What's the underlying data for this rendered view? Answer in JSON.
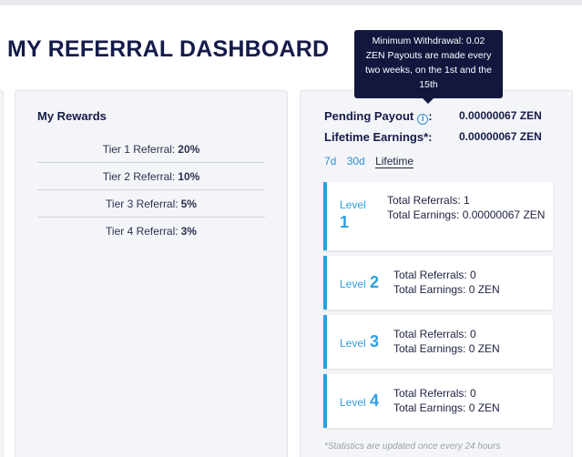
{
  "page": {
    "title": "MY REFERRAL DASHBOARD"
  },
  "rewards": {
    "heading": "My Rewards",
    "tiers": [
      {
        "label": "Tier 1 Referral:",
        "value": "20%"
      },
      {
        "label": "Tier 2 Referral:",
        "value": "10%"
      },
      {
        "label": "Tier 3 Referral:",
        "value": "5%"
      },
      {
        "label": "Tier 4 Referral:",
        "value": "3%"
      }
    ]
  },
  "payout": {
    "pending_label": "Pending Payout",
    "pending_colon": ":",
    "pending_value": "0.00000067 ZEN",
    "lifetime_label": "Lifetime Earnings*:",
    "lifetime_value": "0.00000067 ZEN",
    "info_icon": "info-icon",
    "tooltip": "Minimum Withdrawal: 0.02 ZEN Payouts are made every two weeks, on the 1st and the 15th",
    "periods": [
      {
        "label": "7d",
        "active": false
      },
      {
        "label": "30d",
        "active": false
      },
      {
        "label": "Lifetime",
        "active": true
      }
    ],
    "levels": [
      {
        "label": "Level",
        "number": "1",
        "referrals": "Total Referrals: 1",
        "earnings": "Total Earnings: 0.00000067 ZEN"
      },
      {
        "label": "Level",
        "number": "2",
        "referrals": "Total Referrals: 0",
        "earnings": "Total Earnings: 0 ZEN"
      },
      {
        "label": "Level",
        "number": "3",
        "referrals": "Total Referrals: 0",
        "earnings": "Total Earnings: 0 ZEN"
      },
      {
        "label": "Level",
        "number": "4",
        "referrals": "Total Referrals: 0",
        "earnings": "Total Earnings: 0 ZEN"
      }
    ],
    "note": "*Statistics are updated once every 24 hours"
  },
  "colors": {
    "accent": "#2d9fe0",
    "navy": "#151b4a",
    "tooltip_bg": "#13173e"
  }
}
